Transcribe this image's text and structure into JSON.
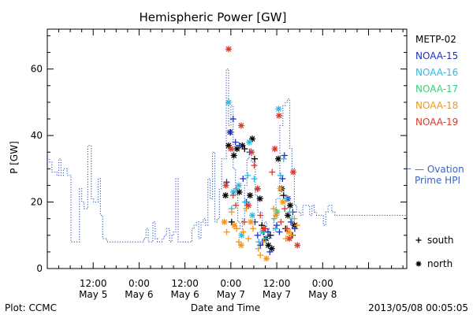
{
  "chart_data": {
    "type": "scatter",
    "title": "Hemispheric Power [GW]",
    "ylabel": "P [GW]",
    "xlabel": "Date and Time",
    "ylim": [
      0,
      72
    ],
    "yticks": [
      0,
      20,
      40,
      60
    ],
    "xlim": [
      0,
      94
    ],
    "xticks": [
      {
        "x": 12,
        "time": "12:00",
        "date": "May 5"
      },
      {
        "x": 24,
        "time": "0:00",
        "date": "May 6"
      },
      {
        "x": 36,
        "time": "12:00",
        "date": "May 6"
      },
      {
        "x": 48,
        "time": "0:00",
        "date": "May 7"
      },
      {
        "x": 60,
        "time": "12:00",
        "date": "May 7"
      },
      {
        "x": 72,
        "time": "0:00",
        "date": "May 8"
      }
    ],
    "grid": false,
    "legend_satellites": [
      {
        "name": "METP-02",
        "color": "#000000"
      },
      {
        "name": "NOAA-15",
        "color": "#1f2fbf"
      },
      {
        "name": "NOAA-16",
        "color": "#2fb8e0"
      },
      {
        "name": "NOAA-17",
        "color": "#3ccf7a"
      },
      {
        "name": "NOAA-18",
        "color": "#f0961e"
      },
      {
        "name": "NOAA-19",
        "color": "#d8392b"
      }
    ],
    "ovation": {
      "label_line1": "— Ovation",
      "label_line2": "Prime HPI",
      "color": "#3a63c8",
      "right_edge_value": 30,
      "steps": [
        [
          0,
          33
        ],
        [
          0.6,
          32
        ],
        [
          1.2,
          29
        ],
        [
          2.5,
          28
        ],
        [
          3,
          33
        ],
        [
          3.6,
          28
        ],
        [
          4.2,
          30
        ],
        [
          5.2,
          28
        ],
        [
          6.2,
          8
        ],
        [
          8.4,
          24
        ],
        [
          9,
          20
        ],
        [
          9.6,
          18
        ],
        [
          10.6,
          37
        ],
        [
          11.5,
          21
        ],
        [
          12.1,
          20
        ],
        [
          13.3,
          27
        ],
        [
          13.9,
          16
        ],
        [
          14.5,
          9
        ],
        [
          15.6,
          8
        ],
        [
          24,
          8
        ],
        [
          25.2,
          9
        ],
        [
          25.8,
          12
        ],
        [
          26.4,
          8
        ],
        [
          27.6,
          14
        ],
        [
          28.2,
          9
        ],
        [
          28.8,
          8
        ],
        [
          30,
          9
        ],
        [
          30.6,
          10
        ],
        [
          31.2,
          12
        ],
        [
          32,
          8
        ],
        [
          32.6,
          10
        ],
        [
          33,
          11
        ],
        [
          33.6,
          27
        ],
        [
          34.2,
          8
        ],
        [
          37.8,
          12
        ],
        [
          38.4,
          13
        ],
        [
          39,
          14
        ],
        [
          39.6,
          9
        ],
        [
          40.2,
          14
        ],
        [
          40.8,
          15
        ],
        [
          41.4,
          13
        ],
        [
          42,
          27
        ],
        [
          42.6,
          21
        ],
        [
          43.2,
          35
        ],
        [
          43.8,
          14
        ],
        [
          44.4,
          15
        ],
        [
          45,
          24
        ],
        [
          45.6,
          33
        ],
        [
          46.8,
          60
        ],
        [
          47.4,
          43
        ],
        [
          48,
          49
        ],
        [
          48.6,
          30
        ],
        [
          49.2,
          23
        ],
        [
          49.8,
          14
        ],
        [
          50.4,
          12
        ],
        [
          51,
          15
        ],
        [
          51.6,
          25
        ],
        [
          52.2,
          33
        ],
        [
          52.8,
          36
        ],
        [
          53.4,
          32
        ],
        [
          54.4,
          22
        ],
        [
          55,
          17
        ],
        [
          56.2,
          11
        ],
        [
          56.8,
          14
        ],
        [
          57.4,
          12
        ],
        [
          58,
          9
        ],
        [
          58.6,
          10
        ],
        [
          59.2,
          15
        ],
        [
          59.8,
          21
        ],
        [
          60.8,
          43
        ],
        [
          61.6,
          49
        ],
        [
          62.2,
          50
        ],
        [
          62.8,
          51
        ],
        [
          63.4,
          36
        ],
        [
          64,
          30
        ],
        [
          64.6,
          19
        ],
        [
          65.2,
          17
        ],
        [
          66.2,
          16
        ],
        [
          66.8,
          19
        ],
        [
          68.6,
          16
        ],
        [
          69.2,
          19
        ],
        [
          69.8,
          17
        ],
        [
          70.4,
          16
        ],
        [
          72.2,
          13
        ],
        [
          72.8,
          17
        ],
        [
          73.4,
          19
        ],
        [
          74.4,
          17
        ],
        [
          75.2,
          16
        ]
      ]
    },
    "symbol_legend": [
      {
        "symbol": "+",
        "label": "south"
      },
      {
        "symbol": "*",
        "label": "north"
      }
    ],
    "series": [
      {
        "name": "METP-02",
        "color": "#000000",
        "points": [
          [
            46.6,
            22,
            "*"
          ],
          [
            47.4,
            37,
            "*"
          ],
          [
            47.9,
            41,
            "+"
          ],
          [
            48.2,
            14,
            "+"
          ],
          [
            48.8,
            34,
            "*"
          ],
          [
            49.6,
            36,
            "*"
          ],
          [
            50.2,
            23,
            "*"
          ],
          [
            51,
            37,
            "*"
          ],
          [
            51.6,
            36,
            "+"
          ],
          [
            53,
            22,
            "*"
          ],
          [
            53.6,
            39,
            "*"
          ],
          [
            54.2,
            33,
            "+"
          ],
          [
            55,
            24,
            "+"
          ],
          [
            55.6,
            21,
            "*"
          ],
          [
            56.1,
            13,
            "+"
          ],
          [
            56.6,
            11,
            "+"
          ],
          [
            57.2,
            9,
            "*"
          ],
          [
            57.8,
            7,
            "*"
          ],
          [
            58.3,
            10,
            "+"
          ],
          [
            58.7,
            6,
            "*"
          ],
          [
            60.4,
            33,
            "*"
          ],
          [
            61.3,
            24,
            "*"
          ],
          [
            61.8,
            22,
            "+"
          ],
          [
            62.3,
            12,
            "+"
          ],
          [
            62.9,
            16,
            "*"
          ],
          [
            63.5,
            19,
            "*"
          ],
          [
            64.1,
            10,
            "+"
          ],
          [
            64.6,
            13,
            "*"
          ]
        ]
      },
      {
        "name": "NOAA-15",
        "color": "#1f2fbf",
        "points": [
          [
            46.9,
            26,
            "+"
          ],
          [
            47.8,
            41,
            "*"
          ],
          [
            48.6,
            45,
            "+"
          ],
          [
            49.2,
            38,
            "+"
          ],
          [
            50.2,
            37,
            "+"
          ],
          [
            51.2,
            27,
            "+"
          ],
          [
            52.1,
            20,
            "+"
          ],
          [
            52.9,
            35,
            "+"
          ],
          [
            54.3,
            14,
            "+"
          ],
          [
            55,
            10,
            "+"
          ],
          [
            55.7,
            7,
            "+"
          ],
          [
            56.2,
            8,
            "+"
          ],
          [
            57,
            12,
            "+"
          ],
          [
            57.7,
            11,
            "+"
          ],
          [
            58.2,
            5,
            "+"
          ],
          [
            60,
            13,
            "+"
          ],
          [
            60.7,
            11,
            "+"
          ],
          [
            61.5,
            27,
            "+"
          ],
          [
            62,
            34,
            "+"
          ],
          [
            62.9,
            21,
            "*"
          ],
          [
            63.7,
            14,
            "+"
          ],
          [
            64.2,
            17,
            "+"
          ],
          [
            64.7,
            12,
            "+"
          ]
        ]
      },
      {
        "name": "NOAA-16",
        "color": "#2fb8e0",
        "points": [
          [
            47.4,
            50,
            "*"
          ],
          [
            48.2,
            18,
            "+"
          ],
          [
            48.7,
            23,
            "*"
          ],
          [
            49.4,
            24,
            "+"
          ],
          [
            50.1,
            25,
            "*"
          ],
          [
            50.8,
            10,
            "*"
          ],
          [
            51.7,
            20,
            "+"
          ],
          [
            52.4,
            28,
            "+"
          ],
          [
            52.8,
            38,
            "*"
          ],
          [
            53.6,
            16,
            "*"
          ],
          [
            54.1,
            27,
            "+"
          ],
          [
            55.3,
            8,
            "+"
          ],
          [
            56.3,
            11,
            "*"
          ],
          [
            57.1,
            9,
            "+"
          ],
          [
            59.7,
            12,
            "+"
          ],
          [
            60.5,
            48,
            "*"
          ],
          [
            61,
            28,
            "+"
          ],
          [
            61.8,
            33,
            "+"
          ],
          [
            62.5,
            21,
            "+"
          ],
          [
            63.4,
            17,
            "+"
          ],
          [
            64,
            15,
            "+"
          ]
        ]
      },
      {
        "name": "NOAA-17",
        "color": "#3ccf7a",
        "points": [
          [
            59.3,
            15,
            "+"
          ],
          [
            60.1,
            17,
            "*"
          ]
        ]
      },
      {
        "name": "NOAA-18",
        "color": "#f0961e",
        "points": [
          [
            46.3,
            14,
            "*"
          ],
          [
            46.9,
            11,
            "+"
          ],
          [
            48.2,
            17,
            "+"
          ],
          [
            48.9,
            13,
            "*"
          ],
          [
            49.5,
            12,
            "+"
          ],
          [
            50.1,
            8,
            "+"
          ],
          [
            50.7,
            7,
            "*"
          ],
          [
            51.2,
            11,
            "+"
          ],
          [
            52,
            18,
            "+"
          ],
          [
            52.6,
            9,
            "+"
          ],
          [
            53.2,
            14,
            "*"
          ],
          [
            53.8,
            12,
            "+"
          ],
          [
            55.2,
            6,
            "+"
          ],
          [
            55.7,
            4,
            "+"
          ],
          [
            56.5,
            8,
            "+"
          ],
          [
            57.3,
            3,
            "*"
          ],
          [
            59.2,
            18,
            "+"
          ],
          [
            59.8,
            16,
            "*"
          ],
          [
            60.9,
            24,
            "*"
          ],
          [
            61.6,
            20,
            "*"
          ],
          [
            62.4,
            9,
            "+"
          ],
          [
            63.1,
            11,
            "*"
          ],
          [
            63.9,
            10,
            "+"
          ],
          [
            64.6,
            15,
            "+"
          ],
          [
            65.3,
            13,
            "+"
          ]
        ]
      },
      {
        "name": "NOAA-19",
        "color": "#d8392b",
        "points": [
          [
            46.7,
            25,
            "*"
          ],
          [
            47.4,
            66,
            "*"
          ],
          [
            48,
            36,
            "*"
          ],
          [
            48.6,
            22,
            "+"
          ],
          [
            49.3,
            19,
            "+"
          ],
          [
            50.7,
            43,
            "*"
          ],
          [
            51.5,
            14,
            "+"
          ],
          [
            52.6,
            19,
            "*"
          ],
          [
            53.4,
            35,
            "*"
          ],
          [
            54.1,
            31,
            "+"
          ],
          [
            55,
            24,
            "*"
          ],
          [
            55.7,
            16,
            "+"
          ],
          [
            56.6,
            12,
            "*"
          ],
          [
            58.8,
            29,
            "+"
          ],
          [
            59.5,
            36,
            "*"
          ],
          [
            60.6,
            46,
            "*"
          ],
          [
            61.1,
            14,
            "+"
          ],
          [
            62.1,
            18,
            "+"
          ],
          [
            62.7,
            12,
            "+"
          ],
          [
            63.3,
            9,
            "*"
          ],
          [
            64.3,
            29,
            "*"
          ],
          [
            65.4,
            7,
            "*"
          ]
        ]
      }
    ]
  },
  "footer": {
    "plot_credit": "Plot: CCMC",
    "timestamp": "2013/05/08 00:05:05"
  }
}
